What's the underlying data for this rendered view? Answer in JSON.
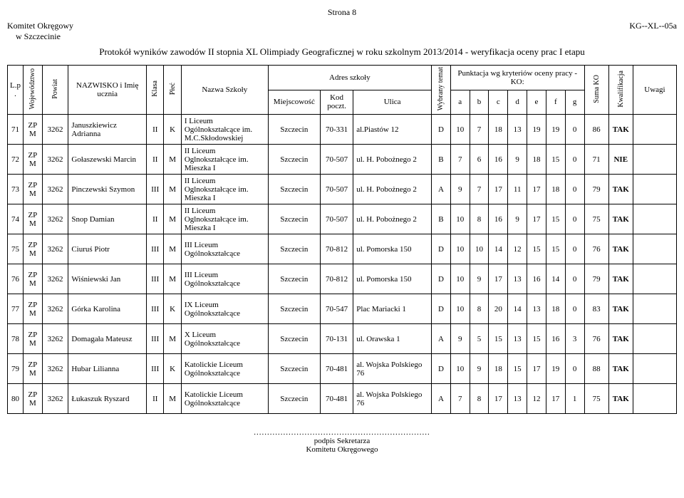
{
  "page": "Strona 8",
  "committee_line1": "Komitet Okręgowy",
  "committee_line2": "w Szczecinie",
  "doc_code": "KG--XL--05a",
  "title": "Protokół wyników zawodów II stopnia XL Olimpiady Geograficznej w roku szkolnym 2013/2014 - weryfikacja oceny prac I etapu",
  "headers": {
    "lp": "L.p.",
    "woj": "Województwo",
    "pow": "Powiat",
    "name": "NAZWISKO i Imię ucznia",
    "klasa": "Klasa",
    "plec": "Płeć",
    "szkola": "Nazwa Szkoły",
    "adres": "Adres szkoły",
    "miejscowosc": "Miejscowość",
    "kod": "Kod poczt.",
    "ulica": "Ulica",
    "wybrany": "Wybrany temat",
    "punktacja": "Punktacja wg kryteriów oceny pracy - KO:",
    "a": "a",
    "b": "b",
    "c": "c",
    "d": "d",
    "e": "e",
    "f": "f",
    "g": "g",
    "suma": "Suma KO",
    "kwal": "Kwalifikacja",
    "uwagi": "Uwagi"
  },
  "rows": [
    {
      "lp": "71",
      "woj": "ZPM",
      "pow": "3262",
      "name": "Januszkiewicz Adrianna",
      "kl": "II",
      "plec": "K",
      "szk": "I Liceum Ogólnokształcące im. M.C.Skłodowskiej",
      "miej": "Szczecin",
      "kod": "70-331",
      "ul": "al.Piastów 12",
      "wyb": "D",
      "a": "10",
      "b": "7",
      "c": "18",
      "d": "13",
      "e": "19",
      "f": "19",
      "g": "0",
      "suma": "86",
      "kw": "TAK",
      "uw": ""
    },
    {
      "lp": "72",
      "woj": "ZPM",
      "pow": "3262",
      "name": "Gołaszewski Marcin",
      "kl": "II",
      "plec": "M",
      "szk": "II Liceum Oglnokształcące im. Mieszka I",
      "miej": "Szczecin",
      "kod": "70-507",
      "ul": "ul. H. Pobożnego 2",
      "wyb": "B",
      "a": "7",
      "b": "6",
      "c": "16",
      "d": "9",
      "e": "18",
      "f": "15",
      "g": "0",
      "suma": "71",
      "kw": "NIE",
      "uw": ""
    },
    {
      "lp": "73",
      "woj": "ZPM",
      "pow": "3262",
      "name": "Pinczewski Szymon",
      "kl": "III",
      "plec": "M",
      "szk": "II Liceum Oglnokształcące im. Mieszka I",
      "miej": "Szczecin",
      "kod": "70-507",
      "ul": "ul. H. Pobożnego 2",
      "wyb": "A",
      "a": "9",
      "b": "7",
      "c": "17",
      "d": "11",
      "e": "17",
      "f": "18",
      "g": "0",
      "suma": "79",
      "kw": "TAK",
      "uw": ""
    },
    {
      "lp": "74",
      "woj": "ZPM",
      "pow": "3262",
      "name": "Snop Damian",
      "kl": "II",
      "plec": "M",
      "szk": "II Liceum Oglnokształcące im. Mieszka I",
      "miej": "Szczecin",
      "kod": "70-507",
      "ul": "ul. H. Pobożnego 2",
      "wyb": "B",
      "a": "10",
      "b": "8",
      "c": "16",
      "d": "9",
      "e": "17",
      "f": "15",
      "g": "0",
      "suma": "75",
      "kw": "TAK",
      "uw": ""
    },
    {
      "lp": "75",
      "woj": "ZPM",
      "pow": "3262",
      "name": "Ciuruś Piotr",
      "kl": "III",
      "plec": "M",
      "szk": "III Liceum Ogólnokształcące",
      "miej": "Szczecin",
      "kod": "70-812",
      "ul": "ul. Pomorska 150",
      "wyb": "D",
      "a": "10",
      "b": "10",
      "c": "14",
      "d": "12",
      "e": "15",
      "f": "15",
      "g": "0",
      "suma": "76",
      "kw": "TAK",
      "uw": ""
    },
    {
      "lp": "76",
      "woj": "ZPM",
      "pow": "3262",
      "name": "Wiśniewski Jan",
      "kl": "III",
      "plec": "M",
      "szk": "III Liceum Ogólnokształcące",
      "miej": "Szczecin",
      "kod": "70-812",
      "ul": "ul. Pomorska 150",
      "wyb": "D",
      "a": "10",
      "b": "9",
      "c": "17",
      "d": "13",
      "e": "16",
      "f": "14",
      "g": "0",
      "suma": "79",
      "kw": "TAK",
      "uw": ""
    },
    {
      "lp": "77",
      "woj": "ZPM",
      "pow": "3262",
      "name": "Górka Karolina",
      "kl": "III",
      "plec": "K",
      "szk": "IX Liceum Ogólnokształcące",
      "miej": "Szczecin",
      "kod": "70-547",
      "ul": "Plac Mariacki 1",
      "wyb": "D",
      "a": "10",
      "b": "8",
      "c": "20",
      "d": "14",
      "e": "13",
      "f": "18",
      "g": "0",
      "suma": "83",
      "kw": "TAK",
      "uw": ""
    },
    {
      "lp": "78",
      "woj": "ZPM",
      "pow": "3262",
      "name": "Domagała Mateusz",
      "kl": "III",
      "plec": "M",
      "szk": "X Liceum Ogólnokształcące",
      "miej": "Szczecin",
      "kod": "70-131",
      "ul": "ul. Orawska 1",
      "wyb": "A",
      "a": "9",
      "b": "5",
      "c": "15",
      "d": "13",
      "e": "15",
      "f": "16",
      "g": "3",
      "suma": "76",
      "kw": "TAK",
      "uw": ""
    },
    {
      "lp": "79",
      "woj": "ZPM",
      "pow": "3262",
      "name": "Hubar Lilianna",
      "kl": "III",
      "plec": "K",
      "szk": "Katolickie Liceum Ogólnokształcące",
      "miej": "Szczecin",
      "kod": "70-481",
      "ul": "al. Wojska Polskiego 76",
      "wyb": "D",
      "a": "10",
      "b": "9",
      "c": "18",
      "d": "15",
      "e": "17",
      "f": "19",
      "g": "0",
      "suma": "88",
      "kw": "TAK",
      "uw": ""
    },
    {
      "lp": "80",
      "woj": "ZPM",
      "pow": "3262",
      "name": "Łukaszuk Ryszard",
      "kl": "II",
      "plec": "M",
      "szk": "Katolickie Liceum Ogólnokształcące",
      "miej": "Szczecin",
      "kod": "70-481",
      "ul": "al. Wojska Polskiego 76",
      "wyb": "A",
      "a": "7",
      "b": "8",
      "c": "17",
      "d": "13",
      "e": "12",
      "f": "17",
      "g": "1",
      "suma": "75",
      "kw": "TAK",
      "uw": ""
    }
  ],
  "footer_dots": "..................................................................",
  "footer_line1": "podpis Sekretarza",
  "footer_line2": "Komitetu Okręgowego"
}
